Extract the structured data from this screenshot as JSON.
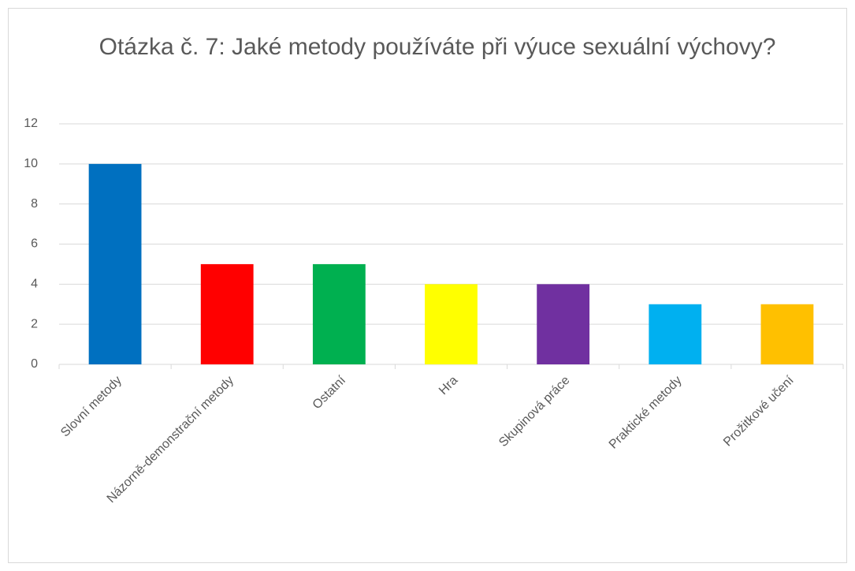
{
  "chart_data": {
    "type": "bar",
    "title": "Otázka č. 7: Jaké metody používáte při výuce sexuální výchovy?",
    "categories": [
      "Slovní metody",
      "Názorně-demonstrační metody",
      "Ostatní",
      "Hra",
      "Skupinová práce",
      "Praktické metody",
      "Prožitkové učení"
    ],
    "values": [
      10,
      5,
      5,
      4,
      4,
      3,
      3
    ],
    "colors": [
      "#0070c0",
      "#ff0000",
      "#00b050",
      "#ffff00",
      "#7030a0",
      "#00b0f0",
      "#ffc000"
    ],
    "ylim": [
      0,
      12
    ],
    "yticks": [
      0,
      2,
      4,
      6,
      8,
      10,
      12
    ],
    "grid": true
  }
}
